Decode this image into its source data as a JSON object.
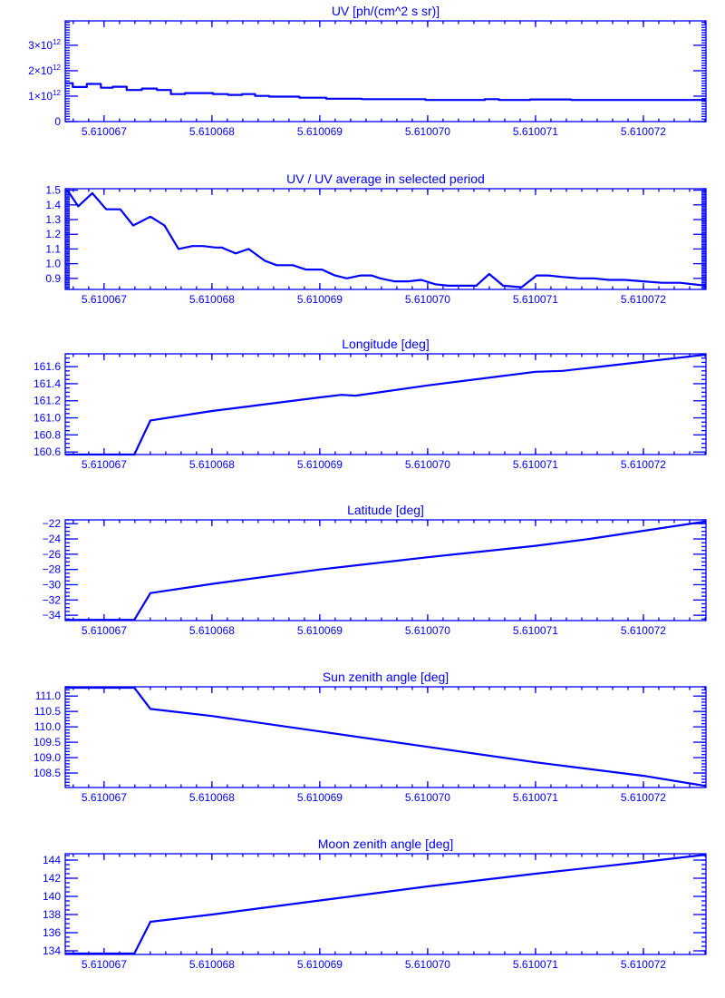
{
  "colors": {
    "ink": "#0000ff"
  },
  "chart_data": [
    {
      "type": "line",
      "style": "steps",
      "title": "UV [ph/(cm^2 s sr)]",
      "xlim": [
        5.61006664,
        5.61007258
      ],
      "xticks": [
        {
          "value": 5.610067,
          "label": "5.610067"
        },
        {
          "value": 5.610068,
          "label": "5.610068"
        },
        {
          "value": 5.610069,
          "label": "5.610069"
        },
        {
          "value": 5.61007,
          "label": "5.610070"
        },
        {
          "value": 5.610071,
          "label": "5.610071"
        },
        {
          "value": 5.610072,
          "label": "5.610072"
        }
      ],
      "y_unit_multiplier": "1e12",
      "ylim": [
        -0.0,
        3.96
      ],
      "yticks": [
        {
          "value": 0,
          "base": "0",
          "exp": ""
        },
        {
          "value": 1,
          "base": "1×10",
          "exp": "12"
        },
        {
          "value": 2,
          "base": "2×10",
          "exp": "12"
        },
        {
          "value": 3,
          "base": "3×10",
          "exp": "12"
        }
      ],
      "y_minor_step": 0.1,
      "bin_edges": [
        5.61006664,
        5.61006671,
        5.61006684,
        5.61006697,
        5.61006708,
        5.61006721,
        5.61006735,
        5.61006749,
        5.61006762,
        5.61006775,
        5.61006801,
        5.61006815,
        5.61006828,
        5.6100684,
        5.61006853,
        5.61006881,
        5.61006906,
        5.61006939,
        5.61006998,
        5.61007024,
        5.61007053,
        5.61007066,
        5.61007095,
        5.61007133,
        5.61007258
      ],
      "values": [
        1.51,
        1.36,
        1.48,
        1.33,
        1.37,
        1.24,
        1.3,
        1.24,
        1.08,
        1.12,
        1.08,
        1.05,
        1.08,
        1.01,
        0.98,
        0.94,
        0.9,
        0.88,
        0.85,
        0.85,
        0.88,
        0.85,
        0.87,
        0.85
      ]
    },
    {
      "type": "line",
      "title": "UV / UV average in selected period",
      "xlim": [
        5.61006664,
        5.61007258
      ],
      "xticks": [
        {
          "value": 5.610067,
          "label": "5.610067"
        },
        {
          "value": 5.610068,
          "label": "5.610068"
        },
        {
          "value": 5.610069,
          "label": "5.610069"
        },
        {
          "value": 5.61007,
          "label": "5.610070"
        },
        {
          "value": 5.610071,
          "label": "5.610071"
        },
        {
          "value": 5.610072,
          "label": "5.610072"
        }
      ],
      "ylim": [
        0.825,
        1.51
      ],
      "yticks": [
        {
          "value": 0.9,
          "base": "0.9",
          "exp": ""
        },
        {
          "value": 1.0,
          "base": "1.0",
          "exp": ""
        },
        {
          "value": 1.1,
          "base": "1.1",
          "exp": ""
        },
        {
          "value": 1.2,
          "base": "1.2",
          "exp": ""
        },
        {
          "value": 1.3,
          "base": "1.3",
          "exp": ""
        },
        {
          "value": 1.4,
          "base": "1.4",
          "exp": ""
        },
        {
          "value": 1.5,
          "base": "1.5",
          "exp": ""
        }
      ],
      "y_minor_step": 0.01,
      "x": [
        5.61006666,
        5.61006676,
        5.61006689,
        5.61006702,
        5.61006715,
        5.61006727,
        5.61006743,
        5.61006756,
        5.61006769,
        5.61006782,
        5.61006792,
        5.61006803,
        5.61006809,
        5.61006822,
        5.61006834,
        5.61006849,
        5.6100686,
        5.61006875,
        5.61006887,
        5.61006902,
        5.61006914,
        5.61006925,
        5.61006938,
        5.61006948,
        5.61006956,
        5.61006969,
        5.61006982,
        5.61006994,
        5.61007007,
        5.61007019,
        5.61007032,
        5.61007045,
        5.61007057,
        5.6100707,
        5.61007087,
        5.61007101,
        5.61007112,
        5.61007124,
        5.61007141,
        5.61007154,
        5.61007168,
        5.61007183,
        5.610072,
        5.61007217,
        5.61007234,
        5.61007258
      ],
      "y": [
        1.5,
        1.39,
        1.48,
        1.37,
        1.37,
        1.26,
        1.32,
        1.26,
        1.1,
        1.12,
        1.12,
        1.11,
        1.11,
        1.07,
        1.1,
        1.02,
        0.99,
        0.99,
        0.96,
        0.96,
        0.92,
        0.9,
        0.92,
        0.92,
        0.9,
        0.88,
        0.88,
        0.89,
        0.86,
        0.85,
        0.85,
        0.85,
        0.93,
        0.85,
        0.84,
        0.92,
        0.92,
        0.91,
        0.9,
        0.9,
        0.89,
        0.89,
        0.88,
        0.87,
        0.87,
        0.85
      ]
    },
    {
      "type": "line",
      "title": "Longitude [deg]",
      "xlim": [
        5.61006664,
        5.61007258
      ],
      "xticks": [
        {
          "value": 5.610067,
          "label": "5.610067"
        },
        {
          "value": 5.610068,
          "label": "5.610068"
        },
        {
          "value": 5.610069,
          "label": "5.610069"
        },
        {
          "value": 5.61007,
          "label": "5.610070"
        },
        {
          "value": 5.610071,
          "label": "5.610071"
        },
        {
          "value": 5.610072,
          "label": "5.610072"
        }
      ],
      "ylim": [
        160.57,
        161.75
      ],
      "yticks": [
        {
          "value": 160.6,
          "base": "160.6",
          "exp": ""
        },
        {
          "value": 160.8,
          "base": "160.8",
          "exp": ""
        },
        {
          "value": 161.0,
          "base": "161.0",
          "exp": ""
        },
        {
          "value": 161.2,
          "base": "161.2",
          "exp": ""
        },
        {
          "value": 161.4,
          "base": "161.4",
          "exp": ""
        },
        {
          "value": 161.6,
          "base": "161.6",
          "exp": ""
        }
      ],
      "y_minor_step": 0.05,
      "x": [
        5.61006664,
        5.61006728,
        5.61006743,
        5.610068,
        5.610069,
        5.6100692,
        5.61006933,
        5.61007,
        5.610071,
        5.61007125,
        5.6100716,
        5.61007258
      ],
      "y": [
        160.57,
        160.57,
        160.97,
        161.08,
        161.24,
        161.27,
        161.26,
        161.38,
        161.54,
        161.55,
        161.6,
        161.74
      ]
    },
    {
      "type": "line",
      "title": "Latitude [deg]",
      "xlim": [
        5.61006664,
        5.61007258
      ],
      "xticks": [
        {
          "value": 5.610067,
          "label": "5.610067"
        },
        {
          "value": 5.610068,
          "label": "5.610068"
        },
        {
          "value": 5.610069,
          "label": "5.610069"
        },
        {
          "value": 5.61007,
          "label": "5.610070"
        },
        {
          "value": 5.610071,
          "label": "5.610071"
        },
        {
          "value": 5.610072,
          "label": "5.610072"
        }
      ],
      "ylim": [
        -34.7,
        -21.5
      ],
      "yticks": [
        {
          "value": -34,
          "base": "−34",
          "exp": ""
        },
        {
          "value": -32,
          "base": "−32",
          "exp": ""
        },
        {
          "value": -30,
          "base": "−30",
          "exp": ""
        },
        {
          "value": -28,
          "base": "−28",
          "exp": ""
        },
        {
          "value": -26,
          "base": "−26",
          "exp": ""
        },
        {
          "value": -24,
          "base": "−24",
          "exp": ""
        },
        {
          "value": -22,
          "base": "−22",
          "exp": ""
        }
      ],
      "y_minor_step": 0.5,
      "x": [
        5.61006664,
        5.61006728,
        5.61006743,
        5.610068,
        5.610069,
        5.61007,
        5.610071,
        5.6100715,
        5.61007258
      ],
      "y": [
        -34.6,
        -34.6,
        -31.1,
        -29.9,
        -28.0,
        -26.4,
        -24.9,
        -24.0,
        -21.7
      ]
    },
    {
      "type": "line",
      "title": "Sun zenith angle [deg]",
      "xlim": [
        5.61006664,
        5.61007258
      ],
      "xticks": [
        {
          "value": 5.610067,
          "label": "5.610067"
        },
        {
          "value": 5.610068,
          "label": "5.610068"
        },
        {
          "value": 5.610069,
          "label": "5.610069"
        },
        {
          "value": 5.61007,
          "label": "5.610070"
        },
        {
          "value": 5.610071,
          "label": "5.610071"
        },
        {
          "value": 5.610072,
          "label": "5.610072"
        }
      ],
      "ylim": [
        108.03,
        111.3
      ],
      "yticks": [
        {
          "value": 108.5,
          "base": "108.5",
          "exp": ""
        },
        {
          "value": 109.0,
          "base": "109.0",
          "exp": ""
        },
        {
          "value": 109.5,
          "base": "109.5",
          "exp": ""
        },
        {
          "value": 110.0,
          "base": "110.0",
          "exp": ""
        },
        {
          "value": 110.5,
          "base": "110.5",
          "exp": ""
        },
        {
          "value": 111.0,
          "base": "111.0",
          "exp": ""
        }
      ],
      "y_minor_step": 0.1,
      "x": [
        5.61006664,
        5.61006728,
        5.61006743,
        5.610068,
        5.610069,
        5.61007,
        5.610071,
        5.610072,
        5.61007258
      ],
      "y": [
        111.27,
        111.27,
        110.58,
        110.35,
        109.85,
        109.35,
        108.85,
        108.41,
        108.08
      ]
    },
    {
      "type": "line",
      "title": "Moon zenith angle [deg]",
      "xlim": [
        5.61006664,
        5.61007258
      ],
      "xticks": [
        {
          "value": 5.610067,
          "label": "5.610067"
        },
        {
          "value": 5.610068,
          "label": "5.610068"
        },
        {
          "value": 5.610069,
          "label": "5.610069"
        },
        {
          "value": 5.61007,
          "label": "5.610070"
        },
        {
          "value": 5.610071,
          "label": "5.610071"
        },
        {
          "value": 5.610072,
          "label": "5.610072"
        }
      ],
      "ylim": [
        133.6,
        144.7
      ],
      "yticks": [
        {
          "value": 134,
          "base": "134",
          "exp": ""
        },
        {
          "value": 136,
          "base": "136",
          "exp": ""
        },
        {
          "value": 138,
          "base": "138",
          "exp": ""
        },
        {
          "value": 140,
          "base": "140",
          "exp": ""
        },
        {
          "value": 142,
          "base": "142",
          "exp": ""
        },
        {
          "value": 144,
          "base": "144",
          "exp": ""
        }
      ],
      "y_minor_step": 0.5,
      "x": [
        5.61006664,
        5.61006728,
        5.61006743,
        5.610068,
        5.610069,
        5.61007,
        5.610071,
        5.610072,
        5.61007258
      ],
      "y": [
        133.7,
        133.7,
        137.2,
        138.0,
        139.55,
        141.1,
        142.5,
        143.8,
        144.6
      ]
    }
  ]
}
